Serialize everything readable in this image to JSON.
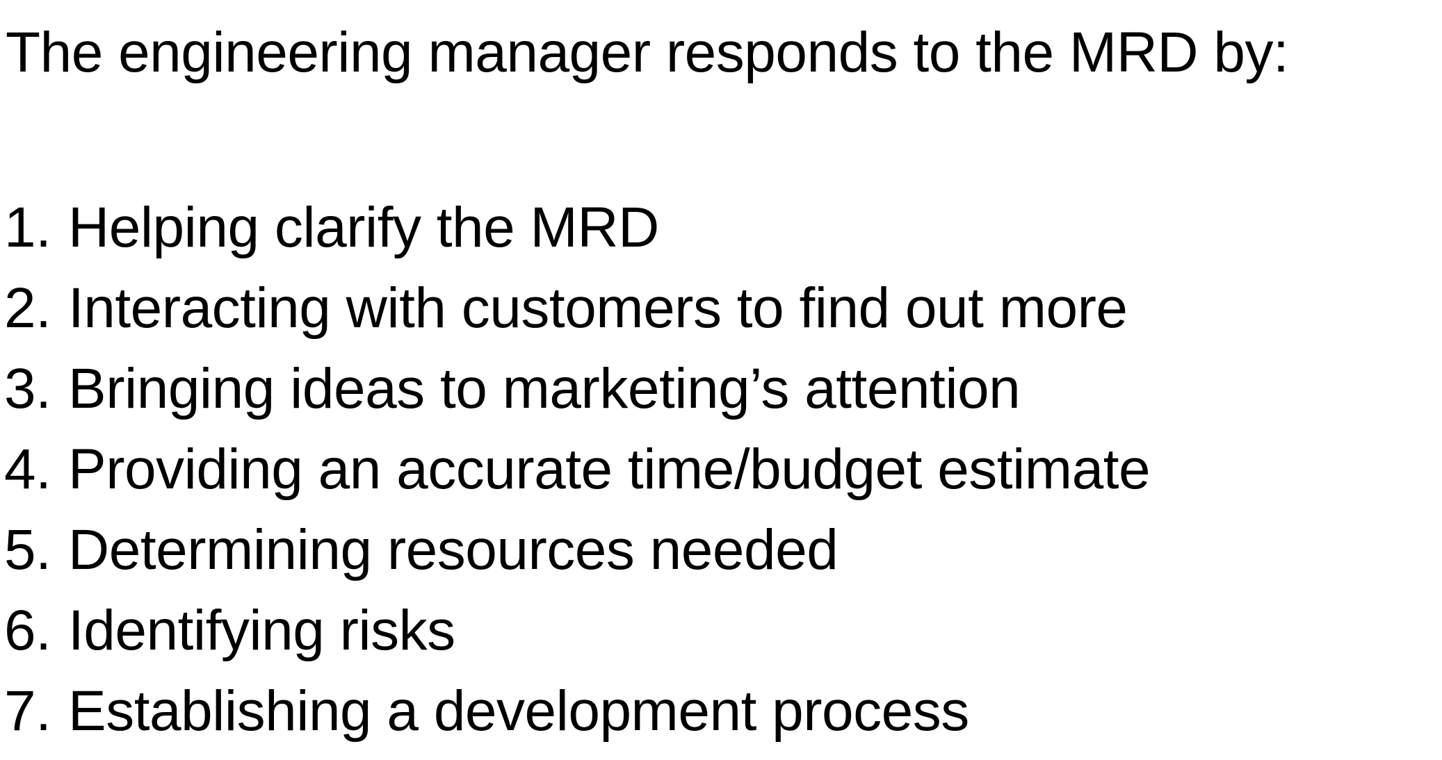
{
  "slide": {
    "intro": "The engineering manager responds to the MRD by:",
    "items": [
      {
        "number": "1.",
        "text": "Helping clarify the MRD"
      },
      {
        "number": "2.",
        "text": "Interacting with customers to find out more"
      },
      {
        "number": "3.",
        "text": "Bringing ideas to marketing’s attention"
      },
      {
        "number": "4.",
        "text": "Providing an accurate time/budget estimate"
      },
      {
        "number": "5.",
        "text": "Determining resources needed"
      },
      {
        "number": "6.",
        "text": "Identifying risks"
      },
      {
        "number": "7.",
        "text": "Establishing a development process"
      }
    ]
  }
}
